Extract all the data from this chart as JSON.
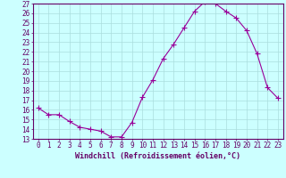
{
  "x": [
    0,
    1,
    2,
    3,
    4,
    5,
    6,
    7,
    8,
    9,
    10,
    11,
    12,
    13,
    14,
    15,
    16,
    17,
    18,
    19,
    20,
    21,
    22,
    23
  ],
  "y": [
    16.2,
    15.5,
    15.5,
    14.8,
    14.2,
    14.0,
    13.8,
    13.2,
    13.2,
    14.7,
    17.3,
    19.1,
    21.3,
    22.8,
    24.5,
    26.2,
    27.2,
    27.0,
    26.2,
    25.5,
    24.2,
    21.8,
    18.3,
    17.2
  ],
  "line_color": "#990099",
  "marker": "+",
  "marker_size": 4,
  "bg_color": "#ccffff",
  "grid_color": "#aadddd",
  "ylim": [
    13,
    27
  ],
  "yticks": [
    13,
    14,
    15,
    16,
    17,
    18,
    19,
    20,
    21,
    22,
    23,
    24,
    25,
    26,
    27
  ],
  "xticks": [
    0,
    1,
    2,
    3,
    4,
    5,
    6,
    7,
    8,
    9,
    10,
    11,
    12,
    13,
    14,
    15,
    16,
    17,
    18,
    19,
    20,
    21,
    22,
    23
  ],
  "xlabel": "Windchill (Refroidissement éolien,°C)",
  "xlabel_fontsize": 6,
  "tick_fontsize": 5.5,
  "axis_color": "#660066",
  "line_width": 0.8,
  "marker_edge_width": 0.8
}
